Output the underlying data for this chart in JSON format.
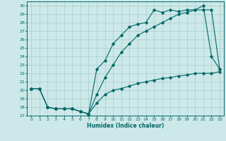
{
  "title": "",
  "xlabel": "Humidex (Indice chaleur)",
  "background_color": "#cce8e8",
  "grid_color": "#aacccc",
  "line_color": "#006666",
  "xmin": 0,
  "xmax": 23,
  "ymin": 17,
  "ymax": 30,
  "line1_x": [
    0,
    1,
    2,
    3,
    4,
    5,
    6,
    7,
    8,
    9,
    10,
    11,
    12,
    13,
    14,
    15,
    16,
    17,
    18,
    19,
    20,
    21,
    22,
    23
  ],
  "line1_y": [
    20.2,
    20.2,
    18.0,
    17.8,
    17.8,
    17.8,
    17.5,
    17.2,
    18.5,
    19.5,
    20.0,
    20.2,
    20.5,
    20.8,
    21.0,
    21.2,
    21.4,
    21.5,
    21.7,
    21.8,
    22.0,
    22.0,
    22.0,
    22.2
  ],
  "line2_x": [
    0,
    1,
    2,
    3,
    4,
    5,
    6,
    7,
    8,
    9,
    10,
    11,
    12,
    13,
    14,
    15,
    16,
    17,
    18,
    19,
    20,
    21,
    22,
    23
  ],
  "line2_y": [
    20.2,
    20.2,
    18.0,
    17.8,
    17.8,
    17.8,
    17.5,
    17.2,
    22.5,
    23.5,
    25.5,
    26.5,
    27.5,
    27.8,
    28.0,
    29.5,
    29.2,
    29.5,
    29.3,
    29.5,
    29.5,
    30.0,
    24.0,
    22.5
  ],
  "line3_x": [
    0,
    1,
    2,
    3,
    4,
    5,
    6,
    7,
    8,
    9,
    10,
    11,
    12,
    13,
    14,
    15,
    16,
    17,
    18,
    19,
    20,
    21,
    22,
    23
  ],
  "line3_y": [
    20.2,
    20.2,
    18.0,
    17.8,
    17.8,
    17.8,
    17.5,
    17.2,
    19.5,
    21.5,
    23.0,
    24.5,
    25.5,
    26.5,
    27.0,
    27.5,
    28.0,
    28.5,
    29.0,
    29.2,
    29.5,
    29.5,
    29.5,
    22.5
  ]
}
